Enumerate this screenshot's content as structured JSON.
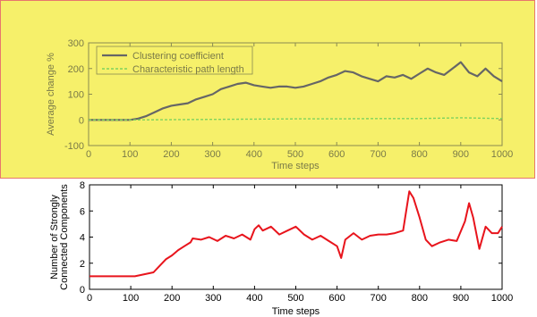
{
  "chart_data": [
    {
      "type": "line",
      "panel_background": "#f6f06a",
      "panel_border": "#e8776c",
      "xlabel": "Time steps",
      "ylabel": "Average change %",
      "xlim": [
        0,
        1000
      ],
      "ylim": [
        -100,
        300
      ],
      "xticks": [
        0,
        100,
        200,
        300,
        400,
        500,
        600,
        700,
        800,
        900,
        1000
      ],
      "yticks": [
        -100,
        0,
        100,
        200,
        300
      ],
      "grid": false,
      "legend_position": "top-left",
      "series": [
        {
          "name": "Clustering coefficient",
          "color": "#666666",
          "x": [
            0,
            100,
            120,
            140,
            160,
            180,
            200,
            220,
            240,
            260,
            280,
            300,
            320,
            340,
            360,
            380,
            400,
            420,
            440,
            460,
            480,
            500,
            520,
            540,
            560,
            580,
            600,
            620,
            640,
            660,
            680,
            700,
            720,
            740,
            760,
            780,
            800,
            820,
            840,
            860,
            880,
            900,
            920,
            940,
            960,
            980,
            1000
          ],
          "y": [
            0,
            0,
            5,
            15,
            30,
            45,
            55,
            60,
            65,
            80,
            90,
            100,
            120,
            130,
            140,
            145,
            135,
            130,
            125,
            130,
            130,
            125,
            130,
            140,
            150,
            165,
            175,
            190,
            185,
            170,
            160,
            150,
            170,
            165,
            175,
            160,
            180,
            200,
            185,
            175,
            200,
            225,
            185,
            170,
            200,
            170,
            150
          ]
        },
        {
          "name": "Characteristic path length",
          "color": "#7fd35c",
          "x": [
            0,
            100,
            200,
            300,
            400,
            500,
            600,
            700,
            800,
            900,
            1000
          ],
          "y": [
            0,
            0,
            1,
            2,
            3,
            4,
            4,
            5,
            5,
            8,
            5
          ]
        }
      ]
    },
    {
      "type": "line",
      "xlabel": "Time steps",
      "ylabel": [
        "Number of Strongly",
        "Connected Components"
      ],
      "xlim": [
        0,
        1000
      ],
      "ylim": [
        0,
        8
      ],
      "xticks": [
        0,
        100,
        200,
        300,
        400,
        500,
        600,
        700,
        800,
        900,
        1000
      ],
      "yticks": [
        0,
        2,
        4,
        6,
        8
      ],
      "grid": false,
      "series": [
        {
          "color": "#e8141c",
          "x": [
            0,
            110,
            155,
            170,
            185,
            200,
            215,
            230,
            245,
            250,
            270,
            290,
            310,
            330,
            350,
            370,
            390,
            400,
            410,
            420,
            440,
            460,
            480,
            500,
            520,
            540,
            560,
            580,
            600,
            610,
            620,
            640,
            660,
            680,
            700,
            720,
            740,
            760,
            775,
            785,
            800,
            815,
            830,
            850,
            870,
            890,
            910,
            920,
            930,
            945,
            960,
            975,
            990,
            1000
          ],
          "y": [
            1,
            1,
            1.3,
            1.8,
            2.3,
            2.6,
            3,
            3.3,
            3.6,
            3.9,
            3.8,
            4,
            3.7,
            4.1,
            3.9,
            4.2,
            3.8,
            4.6,
            4.9,
            4.5,
            4.8,
            4.2,
            4.5,
            4.8,
            4.2,
            3.8,
            4.1,
            3.7,
            3.3,
            2.4,
            3.8,
            4.3,
            3.8,
            4.1,
            4.2,
            4.2,
            4.3,
            4.5,
            7.5,
            7,
            5.5,
            3.8,
            3.3,
            3.6,
            3.8,
            3.7,
            5.2,
            6.6,
            5.5,
            3.1,
            4.8,
            4.3,
            4.3,
            4.8
          ]
        }
      ]
    }
  ]
}
